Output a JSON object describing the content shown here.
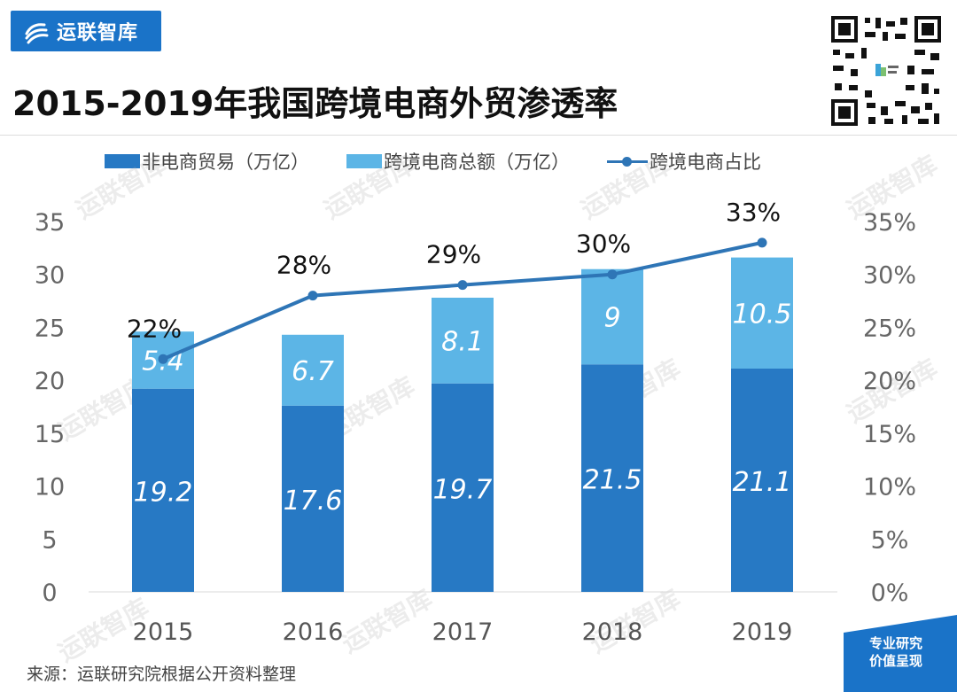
{
  "brand": {
    "name": "运联智库"
  },
  "title": "2015-2019年我国跨境电商外贸渗透率",
  "source": "来源：运联研究院根据公开资料整理",
  "corner_tag": {
    "line1": "专业研究",
    "line2": "价值呈现"
  },
  "watermark_text": "运联智库",
  "colors": {
    "dark_bar": "#2779c4",
    "light_bar": "#5cb5e6",
    "line": "#2e75b6",
    "brand": "#1a73c8"
  },
  "chart_data": {
    "type": "bar",
    "stacked": true,
    "title": "2015-2019年我国跨境电商外贸渗透率",
    "categories": [
      "2015",
      "2016",
      "2017",
      "2018",
      "2019"
    ],
    "series": [
      {
        "name": "非电商贸易（万亿）",
        "type": "bar",
        "axis": "left",
        "values": [
          19.2,
          17.6,
          19.7,
          21.5,
          21.1
        ]
      },
      {
        "name": "跨境电商总额（万亿）",
        "type": "bar",
        "axis": "left",
        "values": [
          5.4,
          6.7,
          8.1,
          9,
          10.5
        ]
      },
      {
        "name": "跨境电商占比",
        "type": "line",
        "axis": "right",
        "values": [
          22,
          28,
          29,
          30,
          33
        ],
        "labels": [
          "22%",
          "28%",
          "29%",
          "30%",
          "33%"
        ]
      }
    ],
    "y_left": {
      "min": 0,
      "max": 35,
      "ticks": [
        "0",
        "5",
        "10",
        "15",
        "20",
        "25",
        "30",
        "35"
      ]
    },
    "y_right": {
      "min": 0,
      "max": 35,
      "ticks": [
        "0%",
        "5%",
        "10%",
        "15%",
        "20%",
        "25%",
        "30%",
        "35%"
      ]
    },
    "legend_position": "top",
    "grid": false
  }
}
